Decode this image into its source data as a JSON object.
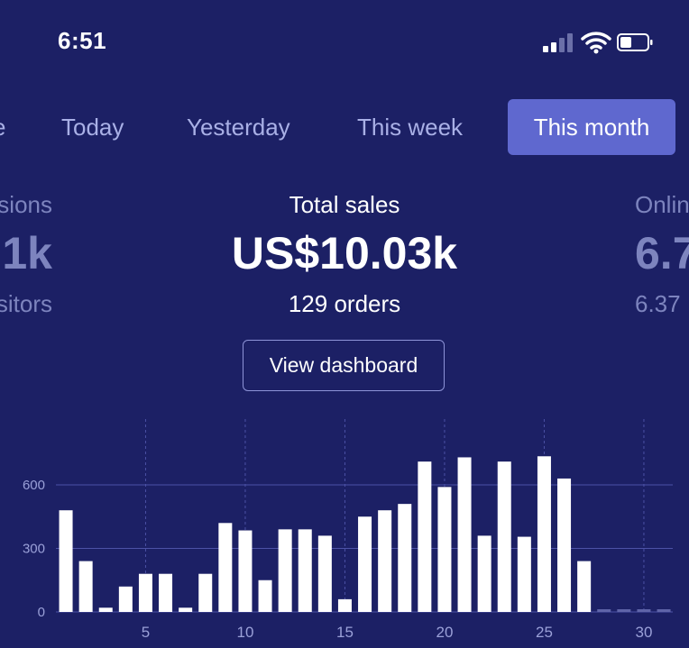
{
  "status_bar": {
    "time": "6:51",
    "icons": [
      "signal-icon",
      "wifi-icon",
      "battery-icon"
    ]
  },
  "tabs": [
    {
      "label": "e",
      "active": false,
      "partial": true
    },
    {
      "label": "Today",
      "active": false
    },
    {
      "label": "Yesterday",
      "active": false
    },
    {
      "label": "This week",
      "active": false
    },
    {
      "label": "This month",
      "active": true
    }
  ],
  "metrics": {
    "left": {
      "label": "sions",
      "value": "1k",
      "sub": "sitors"
    },
    "center": {
      "label": "Total sales",
      "value": "US$10.03k",
      "sub": "129 orders"
    },
    "right": {
      "label": "Onlin",
      "value": "6.7",
      "sub": "6.37"
    }
  },
  "view_dashboard_label": "View dashboard",
  "colors": {
    "background": "#1c2065",
    "accent": "#5f68cf",
    "bar": "#ffffff",
    "gridline": "#4c52a6"
  },
  "chart_data": {
    "type": "bar",
    "x": [
      1,
      2,
      3,
      4,
      5,
      6,
      7,
      8,
      9,
      10,
      11,
      12,
      13,
      14,
      15,
      16,
      17,
      18,
      19,
      20,
      21,
      22,
      23,
      24,
      25,
      26,
      27,
      28,
      29,
      30,
      31
    ],
    "values": [
      480,
      240,
      20,
      120,
      180,
      180,
      20,
      180,
      420,
      385,
      150,
      390,
      390,
      360,
      60,
      450,
      480,
      510,
      710,
      590,
      730,
      360,
      710,
      355,
      735,
      630,
      240,
      0,
      0,
      0,
      0
    ],
    "x_ticks": [
      5,
      10,
      15,
      20,
      25,
      30
    ],
    "y_ticks": [
      0,
      300,
      600
    ],
    "ylim": [
      0,
      760
    ]
  }
}
